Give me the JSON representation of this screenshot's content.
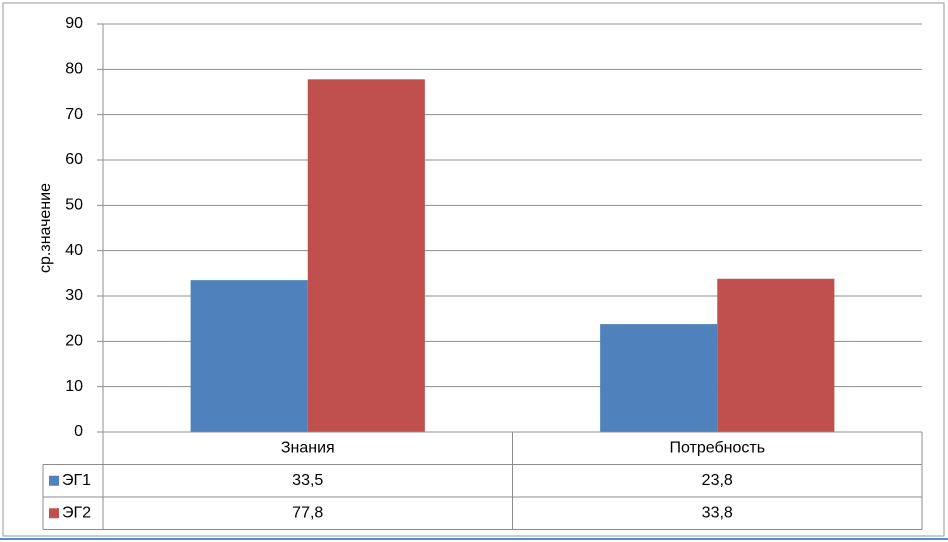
{
  "chart_data": {
    "type": "bar",
    "y_label": "ср.значение",
    "categories": [
      "Знания",
      "Потребность"
    ],
    "series": [
      {
        "name": "ЭГ1",
        "color": "#4f81bd",
        "values": [
          33.5,
          23.8
        ],
        "value_labels": [
          "33,5",
          "23,8"
        ]
      },
      {
        "name": "ЭГ2",
        "color": "#c0504d",
        "values": [
          77.8,
          33.8
        ],
        "value_labels": [
          "77,8",
          "33,8"
        ]
      }
    ],
    "ylim": [
      0,
      90
    ],
    "yticks": [
      0,
      10,
      20,
      30,
      40,
      50,
      60,
      70,
      80,
      90
    ],
    "grid": true
  }
}
